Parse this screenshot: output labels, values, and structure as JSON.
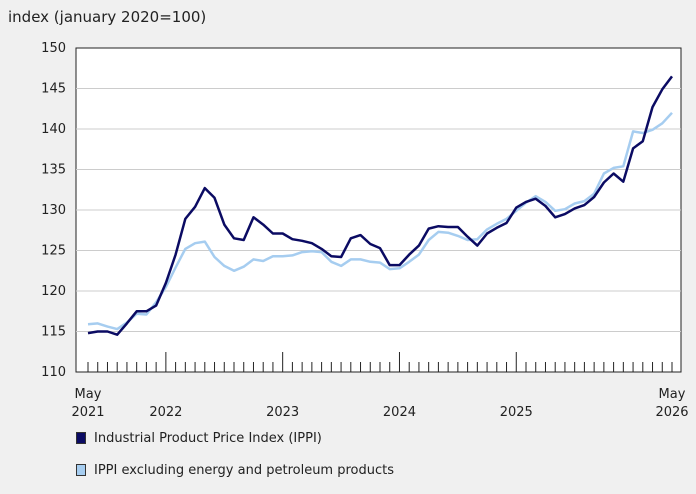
{
  "chart_data": {
    "type": "line",
    "ylabel": "index (january 2020=100)",
    "ylim": [
      110,
      150
    ],
    "yticks": [
      110,
      115,
      120,
      125,
      130,
      135,
      140,
      145,
      150
    ],
    "x_tick_labels": [
      {
        "index": 0,
        "month": "May",
        "year": "2021"
      },
      {
        "index": 8,
        "month": "",
        "year": "2022"
      },
      {
        "index": 20,
        "month": "",
        "year": "2023"
      },
      {
        "index": 32,
        "month": "",
        "year": "2024"
      },
      {
        "index": 44,
        "month": "",
        "year": "2025"
      },
      {
        "index": 60,
        "month": "May",
        "year": "2026"
      }
    ],
    "series": [
      {
        "name": "Industrial Product Price Index (IPPI)",
        "color": "#0b0b63",
        "values": [
          114.8,
          115.0,
          115.0,
          114.6,
          116.0,
          117.5,
          117.5,
          118.2,
          121.0,
          124.5,
          128.9,
          130.4,
          132.7,
          131.5,
          128.2,
          126.5,
          126.3,
          129.1,
          128.2,
          127.1,
          127.1,
          126.4,
          126.2,
          125.9,
          125.2,
          124.3,
          124.2,
          126.5,
          126.9,
          125.8,
          125.3,
          123.2,
          123.2,
          124.5,
          125.6,
          127.7,
          128.0,
          127.9,
          127.9,
          126.7,
          125.6,
          127.1,
          127.8,
          128.4,
          130.3,
          131.0,
          131.4,
          130.5,
          129.1,
          129.5,
          130.2,
          130.6,
          131.6,
          133.4,
          134.5,
          133.5,
          137.6,
          138.5,
          142.7,
          144.9,
          146.5
        ]
      },
      {
        "name": "IPPI excluding energy and petroleum products",
        "color": "#a6cdf0",
        "values": [
          115.9,
          116.0,
          115.6,
          115.3,
          116.1,
          117.2,
          117.1,
          118.6,
          120.5,
          122.9,
          125.2,
          125.9,
          126.1,
          124.2,
          123.1,
          122.5,
          123.0,
          123.9,
          123.7,
          124.3,
          124.3,
          124.4,
          124.8,
          124.9,
          124.8,
          123.6,
          123.1,
          123.9,
          123.9,
          123.6,
          123.5,
          122.7,
          122.8,
          123.6,
          124.5,
          126.3,
          127.3,
          127.2,
          126.8,
          126.3,
          126.4,
          127.6,
          128.3,
          128.9,
          129.9,
          130.9,
          131.7,
          131.0,
          129.9,
          130.1,
          130.8,
          131.1,
          132.0,
          134.5,
          135.2,
          135.4,
          139.7,
          139.5,
          139.9,
          140.7,
          142.0
        ]
      }
    ]
  }
}
